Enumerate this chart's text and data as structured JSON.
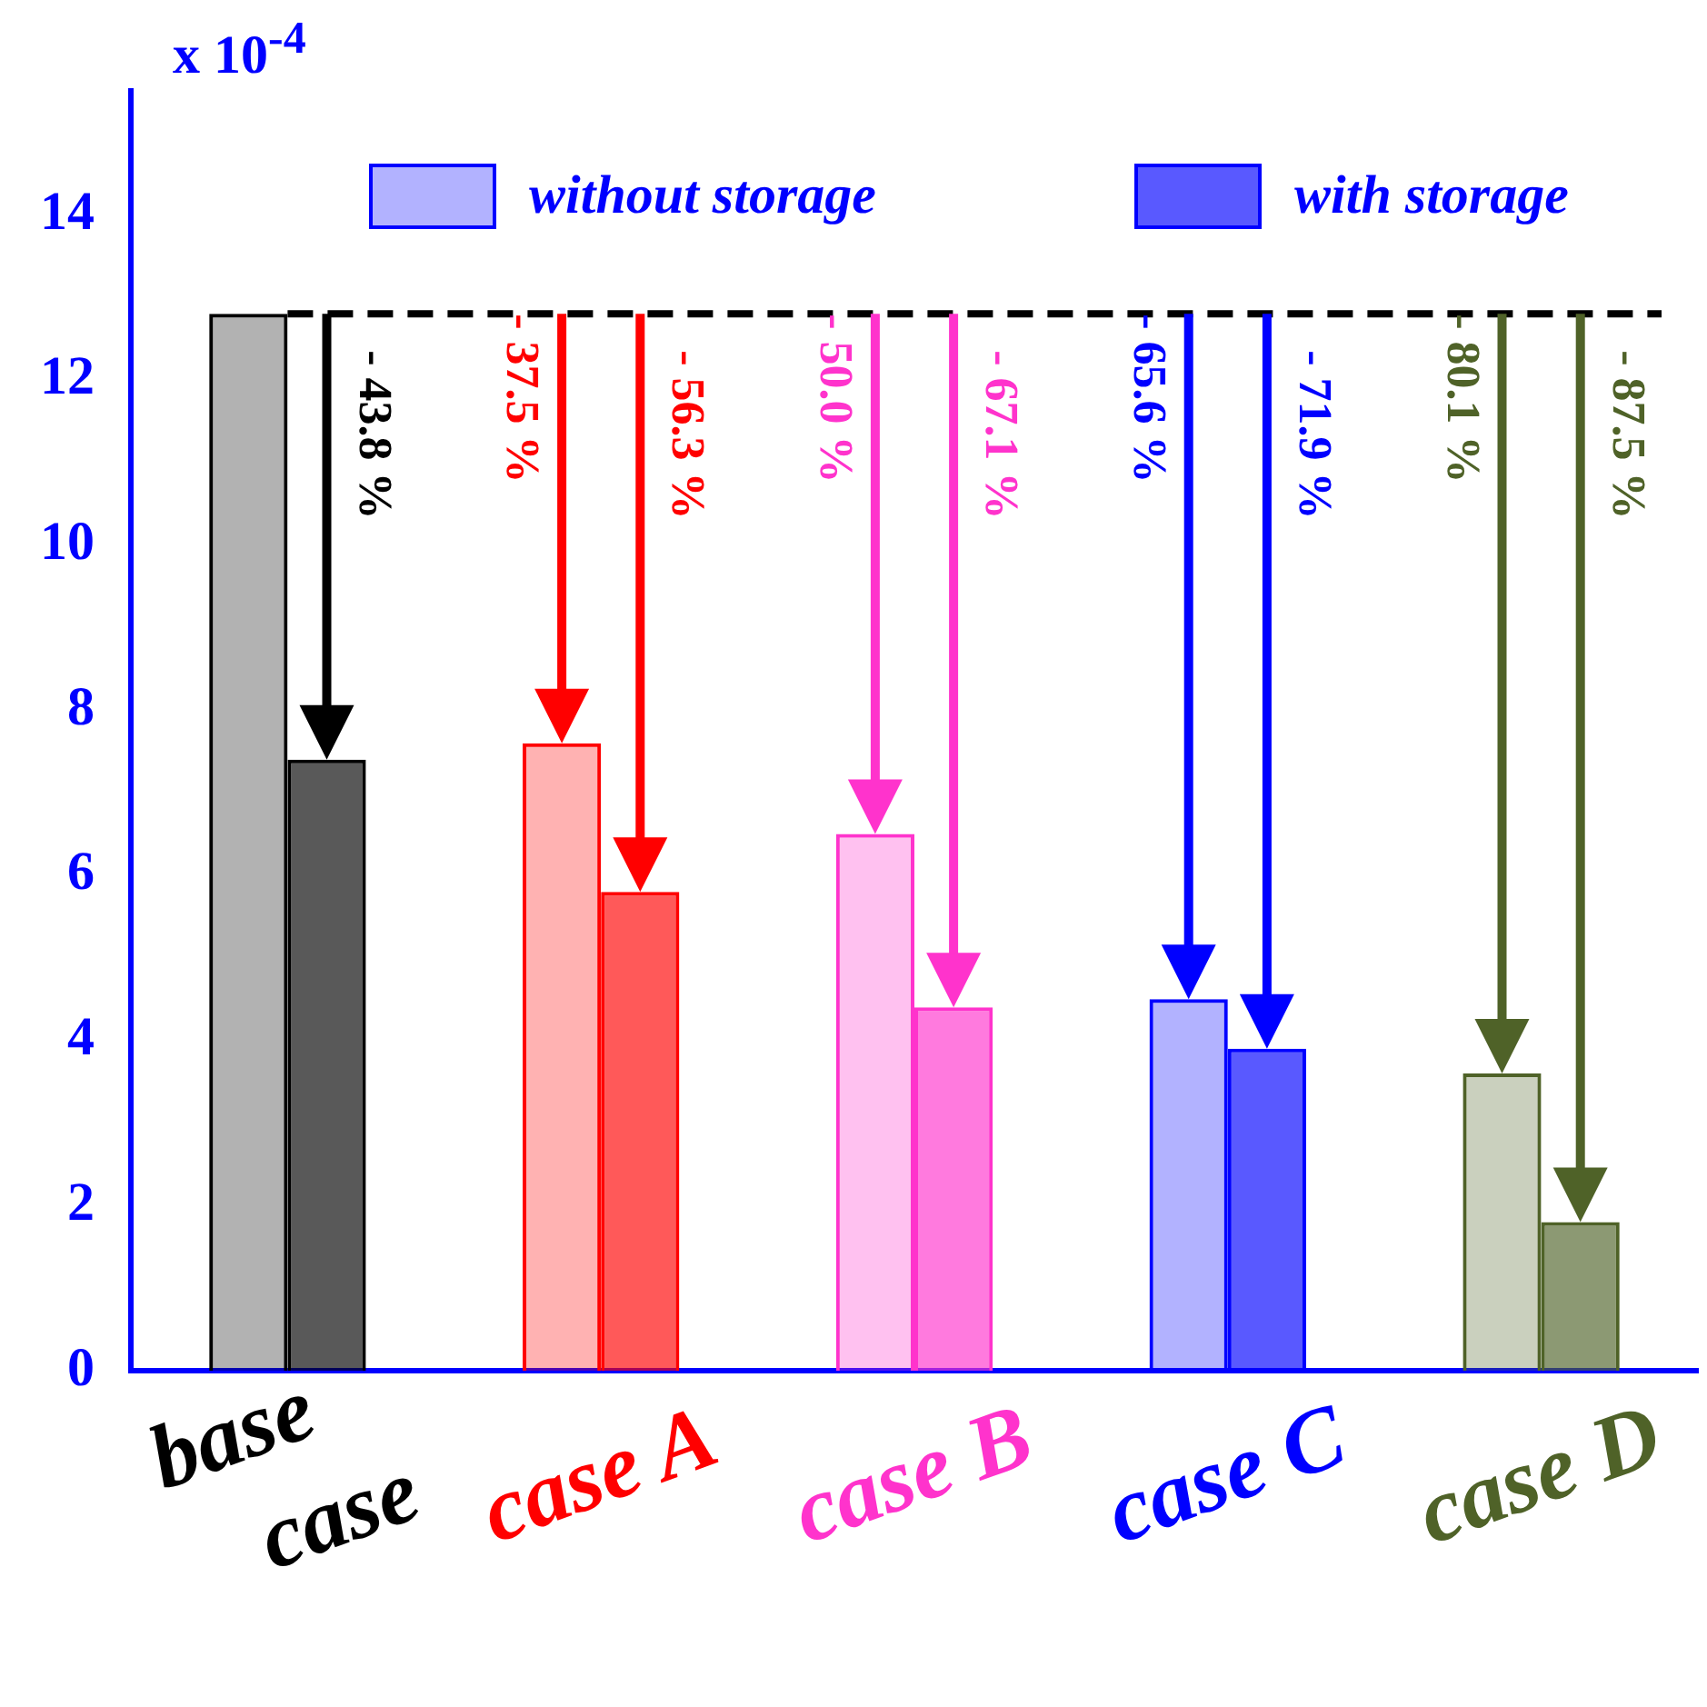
{
  "chart_data": {
    "type": "bar",
    "ylabel": "x 10$^{-4}$",
    "categories": [
      "base case",
      "case A",
      "case B",
      "case C",
      "case D"
    ],
    "series": [
      {
        "name": "without storage",
        "color": "#0000ff",
        "colors": [
          "#000000",
          "#ff0000",
          "#ff33cc",
          "#0000ff",
          "#4f6228"
        ],
        "values": [
          12.8,
          7.6,
          6.5,
          4.5,
          3.6
        ]
      },
      {
        "name": "with storage",
        "color": "#0000ff",
        "colors": [
          "#000000",
          "#ff0000",
          "#ff33cc",
          "#0000ff",
          "#4f6228"
        ],
        "values": [
          7.4,
          5.8,
          4.4,
          3.9,
          1.8
        ]
      }
    ],
    "ylim": [
      0,
      15.5
    ],
    "yticks": [
      0,
      2,
      4,
      6,
      8,
      10,
      12,
      14
    ],
    "grid": false,
    "legend": "top",
    "ref_lines": [
      {
        "axis": "y",
        "value": 12.8,
        "color": "#000000",
        "line_style": "dashed"
      }
    ],
    "annotations": [
      "- 43.8 %",
      "- 37.5 %",
      "- 56.3 %",
      "- 50.0 %",
      "- 67.1 %",
      "- 65.6 %",
      "- 71.9 %",
      "- 80.1 %",
      "- 87.5 %"
    ]
  }
}
